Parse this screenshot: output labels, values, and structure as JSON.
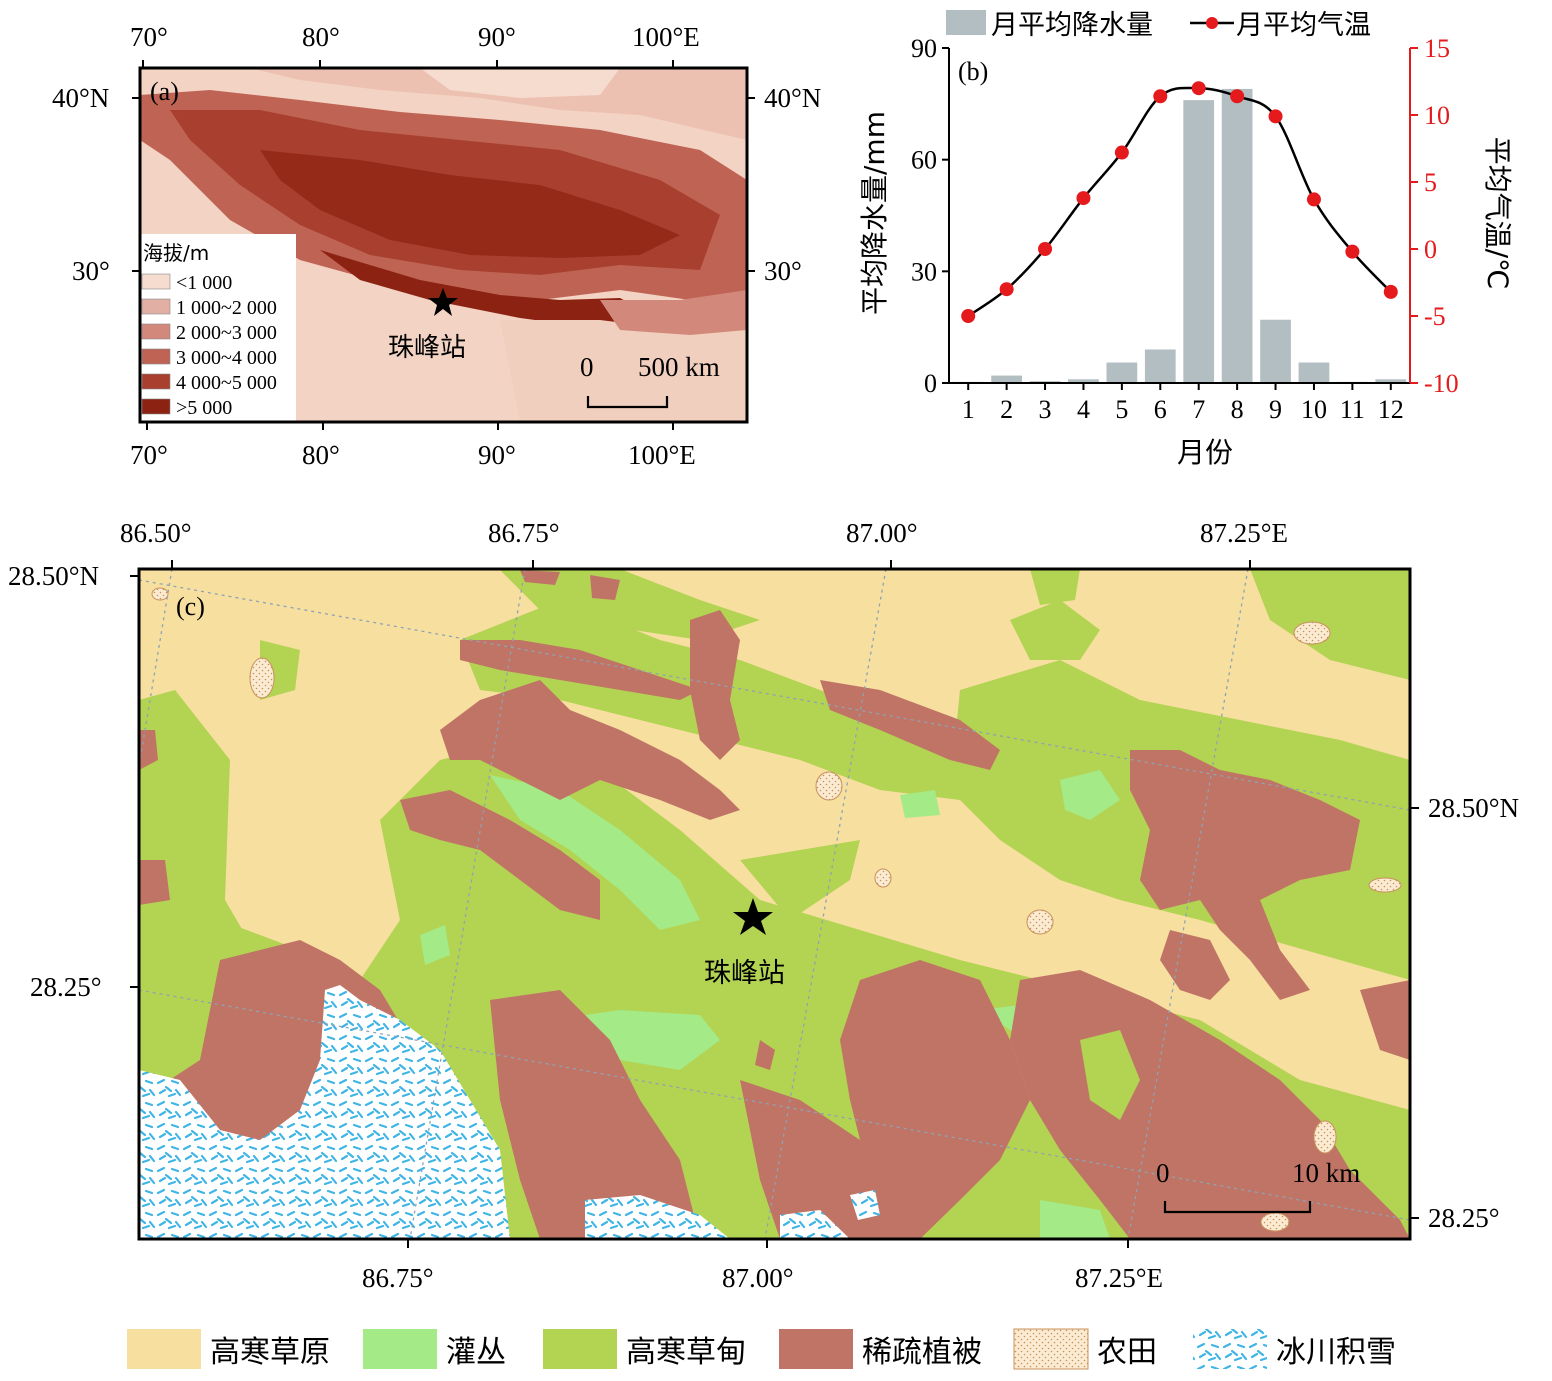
{
  "panel_a": {
    "label": "(a)",
    "top_ticks": [
      "70°",
      "80°",
      "90°",
      "100°E"
    ],
    "bottom_ticks": [
      "70°",
      "80°",
      "90°",
      "100°E"
    ],
    "left_ticks": [
      "40°N",
      "30°"
    ],
    "right_ticks": [
      "40°N",
      "30°"
    ],
    "legend_title": "海拔/m",
    "legend": [
      {
        "label": "<1 000",
        "color": "#f6dccf"
      },
      {
        "label": "1 000~2 000",
        "color": "#e2afa4"
      },
      {
        "label": "2 000~3 000",
        "color": "#d2897c"
      },
      {
        "label": "3 000~4 000",
        "color": "#bf6454"
      },
      {
        "label": "4 000~5 000",
        "color": "#a9402f"
      },
      {
        "label": ">5 000",
        "color": "#8b2212"
      }
    ],
    "station": "珠峰站",
    "scalebar": {
      "start": "0",
      "end": "500 km"
    }
  },
  "panel_b": {
    "label": "(b)",
    "legend_precip": "月平均降水量",
    "legend_temp": "月平均气温",
    "ylabel_left": "平均降水量/mm",
    "ylabel_right": "平均气温/℃",
    "xlabel": "月份",
    "left_ticks": [
      "0",
      "30",
      "60",
      "90"
    ],
    "right_ticks": [
      "-10",
      "-5",
      "0",
      "5",
      "10",
      "15"
    ],
    "x_ticks": [
      "1",
      "2",
      "3",
      "4",
      "5",
      "6",
      "7",
      "8",
      "9",
      "10",
      "11",
      "12"
    ],
    "colors": {
      "bar": "#b3bec2",
      "line": "#000000",
      "marker": "#e41a1c",
      "right_axis": "#e41a1c"
    }
  },
  "chart_data": {
    "type": "bar",
    "categories": [
      "1",
      "2",
      "3",
      "4",
      "5",
      "6",
      "7",
      "8",
      "9",
      "10",
      "11",
      "12"
    ],
    "ylim_left": [
      0,
      90
    ],
    "ylim_right": [
      -10,
      15
    ],
    "series": [
      {
        "name": "月平均降水量",
        "type": "bar",
        "axis": "left",
        "values": [
          0.3,
          2,
          0.5,
          1,
          5.5,
          9,
          76,
          79,
          17,
          5.5,
          0.3,
          1
        ]
      },
      {
        "name": "月平均气温",
        "type": "line",
        "axis": "right",
        "values": [
          -5,
          -3,
          0,
          3.8,
          7.2,
          11.4,
          12,
          11.4,
          9.9,
          3.7,
          -0.2,
          -3.2
        ]
      }
    ]
  },
  "panel_c": {
    "label": "(c)",
    "top_ticks": [
      "86.50°",
      "86.75°",
      "87.00°",
      "87.25°E"
    ],
    "bottom_ticks": [
      "86.75°",
      "87.00°",
      "87.25°E"
    ],
    "left_ticks": [
      "28.50°N",
      "28.25°"
    ],
    "right_ticks": [
      "28.50°N",
      "28.25°"
    ],
    "station": "珠峰站",
    "scalebar": {
      "start": "0",
      "end": "10 km"
    }
  },
  "landcover_legend": [
    {
      "label": "高寒草原",
      "color": "#f7dfa0"
    },
    {
      "label": "灌丛",
      "color": "#a4ea86"
    },
    {
      "label": "高寒草甸",
      "color": "#b3d352"
    },
    {
      "label": "稀疏植被",
      "color": "#c07466"
    },
    {
      "label": "农田",
      "color": "#fbebd2"
    },
    {
      "label": "冰川积雪",
      "color": "#ffffff"
    }
  ]
}
